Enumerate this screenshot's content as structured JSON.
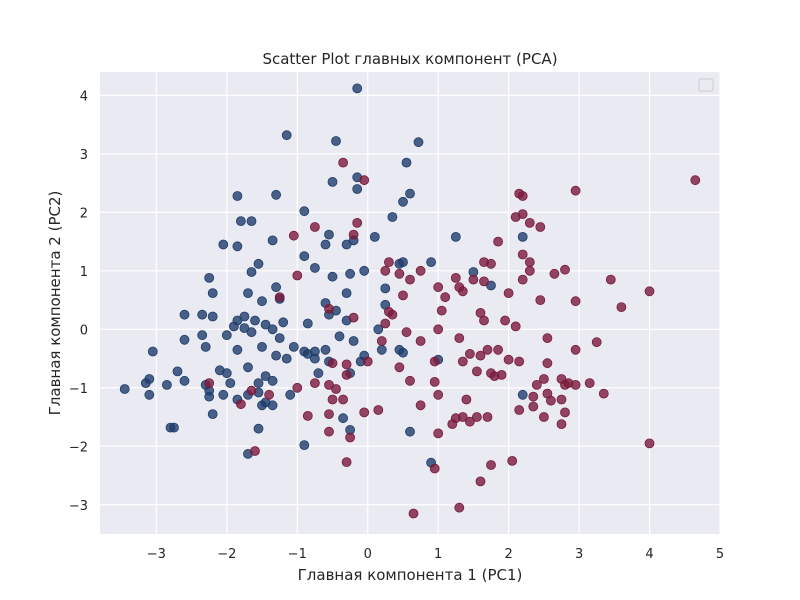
{
  "chart_data": {
    "type": "scatter",
    "title": "Scatter Plot главных компонент (PCA)",
    "xlabel": "Главная компонента 1 (PC1)",
    "ylabel": "Главная компонента 2 (PC2)",
    "xlim": [
      -3.8,
      5.0
    ],
    "ylim": [
      -3.5,
      4.4
    ],
    "x_ticks": [
      -3,
      -2,
      -1,
      0,
      1,
      2,
      3,
      4,
      5
    ],
    "y_ticks": [
      -3,
      -2,
      -1,
      0,
      1,
      2,
      3,
      4
    ],
    "x_tick_labels": [
      "−3",
      "−2",
      "−1",
      "0",
      "1",
      "2",
      "3",
      "4",
      "5"
    ],
    "y_tick_labels": [
      "−3",
      "−2",
      "−1",
      "0",
      "1",
      "2",
      "3",
      "4"
    ],
    "grid": true,
    "legend": "top-right (empty)",
    "colors": {
      "background": "#eaeaf2",
      "grid": "#ffffff",
      "blue": "#1f3d6b",
      "red": "#7a1a3c"
    },
    "series": [
      {
        "color": "#1f3d6b",
        "points": [
          [
            -0.15,
            4.12
          ],
          [
            -1.15,
            3.32
          ],
          [
            0.72,
            3.2
          ],
          [
            -0.45,
            3.22
          ],
          [
            0.55,
            2.85
          ],
          [
            -0.5,
            2.52
          ],
          [
            -0.15,
            2.6
          ],
          [
            -0.15,
            2.4
          ],
          [
            0.5,
            2.18
          ],
          [
            0.6,
            2.32
          ],
          [
            -1.3,
            2.3
          ],
          [
            -1.85,
            2.28
          ],
          [
            -1.8,
            1.85
          ],
          [
            -1.65,
            1.85
          ],
          [
            -0.9,
            2.02
          ],
          [
            -0.2,
            1.52
          ],
          [
            -0.55,
            1.62
          ],
          [
            0.1,
            1.58
          ],
          [
            0.35,
            1.92
          ],
          [
            -2.05,
            1.45
          ],
          [
            -1.85,
            1.42
          ],
          [
            -1.35,
            1.52
          ],
          [
            -0.6,
            1.45
          ],
          [
            -0.3,
            1.45
          ],
          [
            -0.9,
            1.25
          ],
          [
            -1.55,
            1.12
          ],
          [
            -1.65,
            0.98
          ],
          [
            -0.75,
            1.05
          ],
          [
            -0.25,
            0.95
          ],
          [
            -0.05,
            1.0
          ],
          [
            0.45,
            1.12
          ],
          [
            0.5,
            1.15
          ],
          [
            0.25,
            0.7
          ],
          [
            -2.25,
            0.88
          ],
          [
            -1.3,
            0.72
          ],
          [
            -1.7,
            0.62
          ],
          [
            -2.2,
            0.62
          ],
          [
            -1.5,
            0.48
          ],
          [
            -1.25,
            0.52
          ],
          [
            -0.6,
            0.45
          ],
          [
            -0.3,
            0.62
          ],
          [
            -0.45,
            0.32
          ],
          [
            0.25,
            0.42
          ],
          [
            -2.35,
            0.25
          ],
          [
            -2.2,
            0.22
          ],
          [
            -2.6,
            0.25
          ],
          [
            -1.85,
            0.15
          ],
          [
            -1.75,
            0.22
          ],
          [
            -1.6,
            0.15
          ],
          [
            -1.45,
            0.08
          ],
          [
            -1.2,
            0.12
          ],
          [
            -1.35,
            0.0
          ],
          [
            -0.85,
            0.1
          ],
          [
            -0.55,
            0.25
          ],
          [
            -0.3,
            0.15
          ],
          [
            0.15,
            0.0
          ],
          [
            -1.9,
            0.05
          ],
          [
            -1.75,
            0.02
          ],
          [
            -1.65,
            -0.05
          ],
          [
            -2.0,
            -0.1
          ],
          [
            -2.35,
            -0.1
          ],
          [
            -2.6,
            -0.18
          ],
          [
            -3.05,
            -0.38
          ],
          [
            -2.3,
            -0.3
          ],
          [
            -1.85,
            -0.35
          ],
          [
            -1.5,
            -0.3
          ],
          [
            -1.25,
            -0.15
          ],
          [
            -1.05,
            -0.3
          ],
          [
            -0.9,
            -0.38
          ],
          [
            -0.75,
            -0.38
          ],
          [
            -0.6,
            -0.35
          ],
          [
            -0.4,
            -0.12
          ],
          [
            -0.2,
            -0.2
          ],
          [
            -0.05,
            -0.45
          ],
          [
            0.2,
            -0.35
          ],
          [
            0.5,
            -0.4
          ],
          [
            -1.3,
            -0.45
          ],
          [
            -1.15,
            -0.5
          ],
          [
            -0.75,
            -0.5
          ],
          [
            -0.55,
            -0.55
          ],
          [
            -0.1,
            -0.55
          ],
          [
            -0.7,
            -0.75
          ],
          [
            -1.7,
            -0.65
          ],
          [
            -1.45,
            -0.8
          ],
          [
            -2.0,
            -0.75
          ],
          [
            -2.1,
            -0.7
          ],
          [
            -2.7,
            -0.72
          ],
          [
            -2.85,
            -0.95
          ],
          [
            -3.45,
            -1.02
          ],
          [
            -3.1,
            -0.85
          ],
          [
            -3.15,
            -0.92
          ],
          [
            -2.6,
            -0.88
          ],
          [
            -2.3,
            -0.95
          ],
          [
            -2.25,
            -1.05
          ],
          [
            -1.95,
            -0.92
          ],
          [
            -1.85,
            -1.2
          ],
          [
            -1.55,
            -0.92
          ],
          [
            -1.35,
            -0.88
          ],
          [
            -1.55,
            -1.08
          ],
          [
            -1.45,
            -1.25
          ],
          [
            -1.1,
            -1.12
          ],
          [
            -1.7,
            -1.12
          ],
          [
            -2.05,
            -1.12
          ],
          [
            -2.25,
            -1.15
          ],
          [
            -3.1,
            -1.12
          ],
          [
            -2.2,
            -1.45
          ],
          [
            -1.5,
            -1.3
          ],
          [
            -1.35,
            -1.3
          ],
          [
            -0.35,
            -1.52
          ],
          [
            -0.25,
            -1.72
          ],
          [
            -1.55,
            -1.7
          ],
          [
            -2.75,
            -1.68
          ],
          [
            -2.8,
            -1.68
          ],
          [
            -1.7,
            -2.13
          ],
          [
            -0.9,
            -1.98
          ],
          [
            0.6,
            -1.75
          ],
          [
            0.9,
            -2.28
          ],
          [
            1.0,
            -0.52
          ],
          [
            0.9,
            1.15
          ],
          [
            1.25,
            1.58
          ],
          [
            1.5,
            0.98
          ],
          [
            1.75,
            0.75
          ],
          [
            2.2,
            1.58
          ],
          [
            2.2,
            -1.12
          ],
          [
            -0.5,
            0.9
          ],
          [
            -0.85,
            -0.42
          ],
          [
            -0.25,
            -0.75
          ],
          [
            0.45,
            -0.35
          ]
        ]
      },
      {
        "color": "#7a1a3c",
        "points": [
          [
            4.65,
            2.55
          ],
          [
            2.95,
            2.37
          ],
          [
            2.15,
            2.32
          ],
          [
            2.2,
            2.28
          ],
          [
            -0.05,
            2.55
          ],
          [
            -0.35,
            2.85
          ],
          [
            2.2,
            1.97
          ],
          [
            2.3,
            1.82
          ],
          [
            2.1,
            1.92
          ],
          [
            2.45,
            1.75
          ],
          [
            -0.75,
            1.75
          ],
          [
            -0.15,
            1.82
          ],
          [
            -0.2,
            1.62
          ],
          [
            -1.05,
            1.6
          ],
          [
            1.85,
            1.5
          ],
          [
            1.65,
            1.15
          ],
          [
            1.75,
            1.12
          ],
          [
            2.2,
            1.28
          ],
          [
            2.3,
            1.15
          ],
          [
            2.65,
            0.95
          ],
          [
            2.8,
            1.02
          ],
          [
            3.45,
            0.85
          ],
          [
            2.2,
            0.85
          ],
          [
            2.3,
            1.0
          ],
          [
            1.5,
            0.85
          ],
          [
            1.25,
            0.88
          ],
          [
            1.3,
            0.72
          ],
          [
            1.0,
            0.72
          ],
          [
            0.75,
            1.0
          ],
          [
            0.45,
            0.95
          ],
          [
            0.25,
            1.0
          ],
          [
            0.5,
            0.58
          ],
          [
            0.6,
            0.85
          ],
          [
            1.1,
            0.55
          ],
          [
            1.35,
            0.65
          ],
          [
            1.65,
            0.82
          ],
          [
            2.0,
            0.62
          ],
          [
            2.45,
            0.5
          ],
          [
            2.95,
            0.48
          ],
          [
            3.6,
            0.38
          ],
          [
            4.0,
            0.65
          ],
          [
            0.35,
            0.25
          ],
          [
            0.3,
            0.3
          ],
          [
            -1.0,
            0.92
          ],
          [
            -1.25,
            0.55
          ],
          [
            -0.55,
            0.35
          ],
          [
            -0.2,
            0.2
          ],
          [
            1.05,
            0.32
          ],
          [
            1.6,
            0.28
          ],
          [
            1.65,
            0.15
          ],
          [
            1.95,
            0.15
          ],
          [
            2.1,
            0.05
          ],
          [
            1.0,
            0.0
          ],
          [
            0.55,
            -0.05
          ],
          [
            0.2,
            -0.2
          ],
          [
            0.25,
            0.1
          ],
          [
            0.75,
            -0.2
          ],
          [
            1.3,
            -0.15
          ],
          [
            1.45,
            -0.42
          ],
          [
            1.6,
            -0.45
          ],
          [
            1.7,
            -0.35
          ],
          [
            1.85,
            -0.35
          ],
          [
            2.0,
            -0.52
          ],
          [
            2.15,
            -0.55
          ],
          [
            2.55,
            -0.58
          ],
          [
            2.95,
            -0.35
          ],
          [
            2.55,
            -0.15
          ],
          [
            3.25,
            -0.22
          ],
          [
            -0.5,
            -0.58
          ],
          [
            -0.3,
            -0.6
          ],
          [
            0.0,
            -0.55
          ],
          [
            0.45,
            -0.65
          ],
          [
            0.95,
            -0.55
          ],
          [
            1.35,
            -0.55
          ],
          [
            1.55,
            -0.72
          ],
          [
            1.75,
            -0.75
          ],
          [
            1.9,
            -0.78
          ],
          [
            1.8,
            -0.8
          ],
          [
            2.5,
            -0.85
          ],
          [
            2.75,
            -0.85
          ],
          [
            2.85,
            -0.92
          ],
          [
            2.95,
            -0.95
          ],
          [
            2.8,
            -0.95
          ],
          [
            2.4,
            -0.95
          ],
          [
            2.55,
            -1.1
          ],
          [
            2.6,
            -1.22
          ],
          [
            2.35,
            -1.15
          ],
          [
            2.75,
            -1.2
          ],
          [
            3.15,
            -0.92
          ],
          [
            3.35,
            -1.1
          ],
          [
            -0.75,
            -0.92
          ],
          [
            -0.55,
            -0.95
          ],
          [
            -0.3,
            -0.78
          ],
          [
            -1.0,
            -1.0
          ],
          [
            -1.65,
            -1.05
          ],
          [
            -1.4,
            -1.12
          ],
          [
            -1.8,
            -1.28
          ],
          [
            -1.6,
            -2.08
          ],
          [
            -2.25,
            -0.92
          ],
          [
            -0.85,
            -1.48
          ],
          [
            -0.55,
            -1.45
          ],
          [
            -0.5,
            -1.2
          ],
          [
            -0.45,
            -1.02
          ],
          [
            -0.35,
            -1.2
          ],
          [
            -0.55,
            -1.75
          ],
          [
            -0.25,
            -1.85
          ],
          [
            -0.05,
            -1.42
          ],
          [
            0.15,
            -1.38
          ],
          [
            0.6,
            -0.88
          ],
          [
            0.95,
            -0.9
          ],
          [
            1.0,
            -1.12
          ],
          [
            1.4,
            -1.2
          ],
          [
            1.35,
            -1.5
          ],
          [
            1.45,
            -1.58
          ],
          [
            1.55,
            -1.5
          ],
          [
            1.7,
            -1.5
          ],
          [
            2.15,
            -1.38
          ],
          [
            2.35,
            -1.32
          ],
          [
            2.5,
            -1.5
          ],
          [
            2.8,
            -1.42
          ],
          [
            2.75,
            -1.62
          ],
          [
            1.25,
            -1.52
          ],
          [
            1.0,
            -1.78
          ],
          [
            0.75,
            -1.3
          ],
          [
            1.2,
            -1.62
          ],
          [
            -0.3,
            -2.27
          ],
          [
            0.95,
            -2.38
          ],
          [
            1.75,
            -2.32
          ],
          [
            2.05,
            -2.25
          ],
          [
            1.6,
            -2.6
          ],
          [
            1.3,
            -3.05
          ],
          [
            0.65,
            -3.15
          ],
          [
            4.0,
            -1.95
          ],
          [
            0.3,
            1.15
          ]
        ]
      }
    ]
  }
}
